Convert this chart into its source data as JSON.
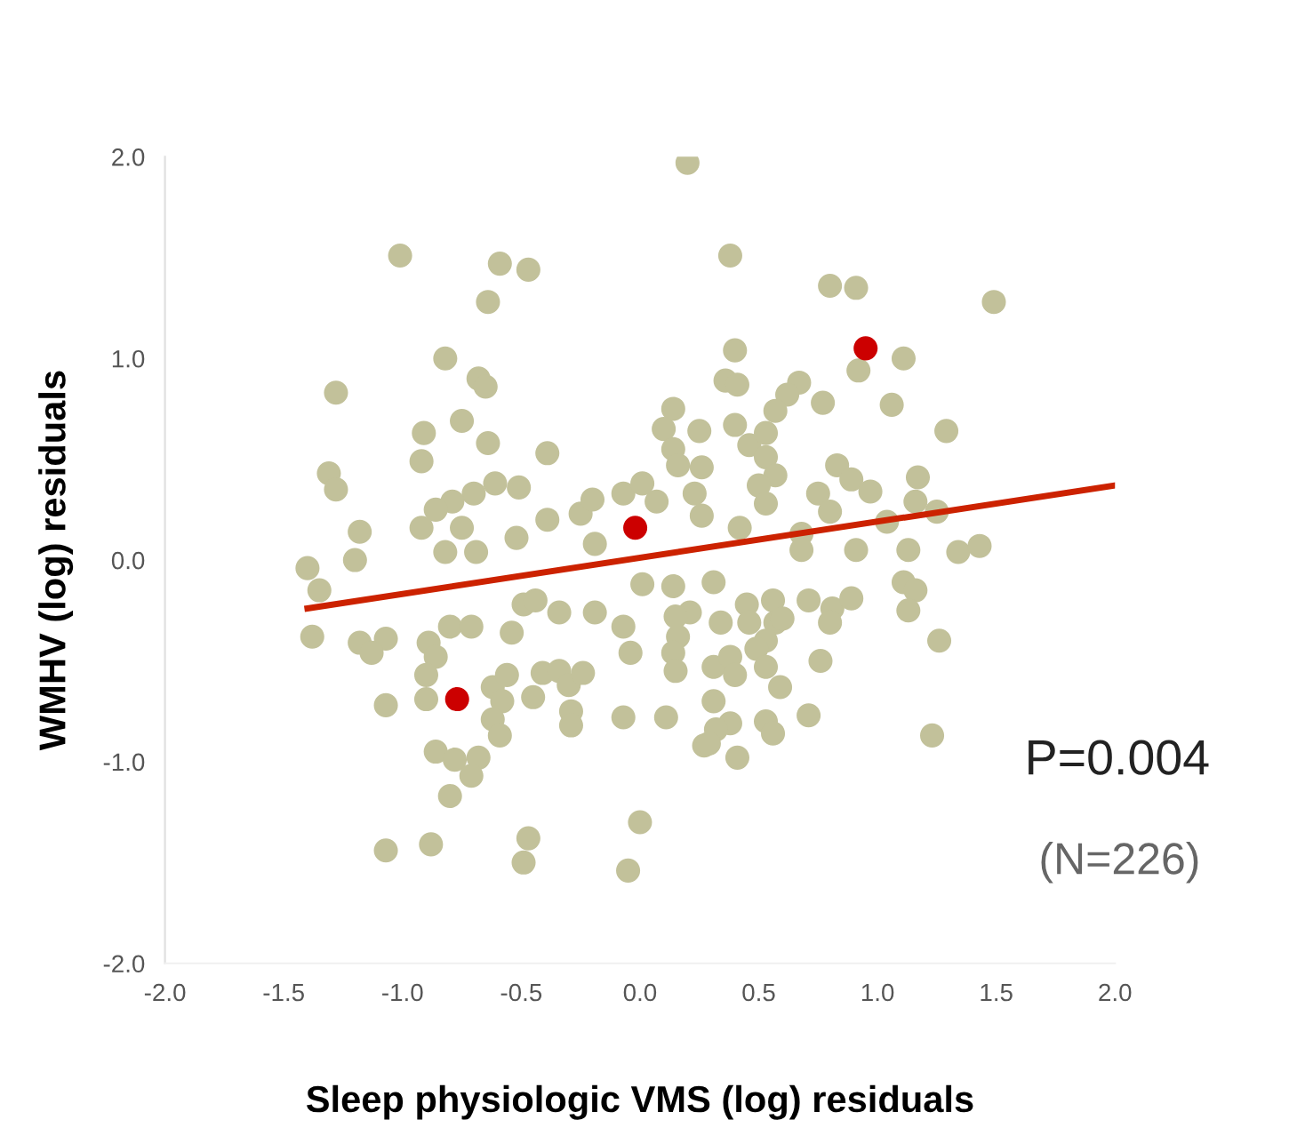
{
  "chart_data": {
    "type": "scatter",
    "xlabel": "Sleep physiologic VMS (log) residuals",
    "ylabel": "WMHV (log) residuals",
    "xlim": [
      -2,
      2
    ],
    "ylim": [
      -2,
      2
    ],
    "xticks": [
      {
        "value": -2,
        "label": "-2.0"
      },
      {
        "value": -1.5,
        "label": "-1.5"
      },
      {
        "value": -1,
        "label": "-1.0"
      },
      {
        "value": -0.5,
        "label": "-0.5"
      },
      {
        "value": 0,
        "label": "0.0"
      },
      {
        "value": 0.5,
        "label": "0.5"
      },
      {
        "value": 1,
        "label": "1.0"
      },
      {
        "value": 1.5,
        "label": "1.5"
      },
      {
        "value": 2,
        "label": "2.0"
      }
    ],
    "yticks": [
      {
        "value": -2,
        "label": "-2.0"
      },
      {
        "value": -1,
        "label": "-1.0"
      },
      {
        "value": 0,
        "label": "0.0"
      },
      {
        "value": 1,
        "label": "1.0"
      },
      {
        "value": 2,
        "label": "2.0"
      }
    ],
    "grid": false,
    "annotations": [
      "P=0.004",
      "(N=226)"
    ],
    "series": [
      {
        "marker": "circle",
        "color": "#c2c19a",
        "x": [
          0.2,
          -1.01,
          -0.59,
          -0.47,
          -0.64,
          -0.82,
          -0.68,
          -0.65,
          -1.28,
          -0.75,
          -0.91,
          -0.64,
          -0.39,
          -0.92,
          0.14,
          0.1,
          0.25,
          -1.31,
          -1.28,
          -0.61,
          -0.51,
          -0.7,
          -0.79,
          -0.86,
          -0.92,
          -1.18,
          -0.39,
          -0.52,
          -0.25,
          -0.2,
          -0.07,
          0.01,
          0.07,
          0.14,
          0.16,
          -0.19,
          -1.2,
          -1.4,
          -0.75,
          -0.82,
          -0.69,
          0.38,
          0.8,
          0.91,
          1.49,
          0.92,
          1.11,
          0.4,
          0.36,
          0.41,
          0.67,
          0.62,
          0.57,
          0.77,
          1.06,
          1.29,
          0.4,
          0.46,
          0.53,
          0.53,
          0.57,
          0.26,
          0.23,
          0.26,
          0.5,
          0.53,
          0.83,
          0.89,
          0.97,
          0.75,
          0.8,
          1.17,
          1.16,
          1.25,
          1.04,
          0.42,
          0.68,
          0.91,
          1.13,
          1.34,
          1.43,
          -1.35,
          -1.38,
          -1.18,
          -1.07,
          -1.13,
          -0.89,
          -0.86,
          -0.8,
          -0.71,
          -0.54,
          -0.49,
          -0.44,
          -0.34,
          -0.19,
          -0.07,
          -0.04,
          0.01,
          0.14,
          0.21,
          0.16,
          0.14,
          0.15,
          -1.07,
          -0.9,
          -0.9,
          -0.62,
          -0.56,
          -0.58,
          -0.62,
          -0.59,
          -0.45,
          -0.41,
          -0.34,
          -0.3,
          -0.24,
          -0.29,
          -0.29,
          -0.07,
          0.11,
          0.27,
          -0.86,
          -0.78,
          -0.68,
          -0.71,
          -0.8,
          0.0,
          -1.07,
          -0.88,
          -0.47,
          -0.49,
          -0.05,
          0.68,
          0.31,
          0.15,
          0.34,
          0.45,
          0.46,
          0.56,
          0.57,
          0.6,
          0.53,
          0.49,
          0.71,
          0.81,
          0.89,
          0.8,
          1.11,
          1.16,
          1.13,
          1.26,
          0.76,
          0.31,
          0.38,
          0.4,
          0.53,
          0.59,
          0.31,
          0.38,
          0.32,
          0.29,
          0.53,
          0.56,
          0.71,
          0.41,
          1.23
        ],
        "values": [
          1.97,
          1.51,
          1.47,
          1.44,
          1.28,
          1.0,
          0.9,
          0.86,
          0.83,
          0.69,
          0.63,
          0.58,
          0.53,
          0.49,
          0.75,
          0.65,
          0.64,
          0.43,
          0.35,
          0.38,
          0.36,
          0.33,
          0.29,
          0.25,
          0.16,
          0.14,
          0.2,
          0.11,
          0.23,
          0.3,
          0.33,
          0.38,
          0.29,
          0.55,
          0.47,
          0.08,
          0.0,
          -0.04,
          0.16,
          0.04,
          0.04,
          1.51,
          1.36,
          1.35,
          1.28,
          0.94,
          1.0,
          1.04,
          0.89,
          0.87,
          0.88,
          0.82,
          0.74,
          0.78,
          0.77,
          0.64,
          0.67,
          0.57,
          0.63,
          0.51,
          0.42,
          0.46,
          0.33,
          0.22,
          0.37,
          0.28,
          0.47,
          0.4,
          0.34,
          0.33,
          0.24,
          0.41,
          0.29,
          0.24,
          0.19,
          0.16,
          0.13,
          0.05,
          0.05,
          0.04,
          0.07,
          -0.15,
          -0.38,
          -0.41,
          -0.39,
          -0.46,
          -0.41,
          -0.48,
          -0.33,
          -0.33,
          -0.36,
          -0.22,
          -0.2,
          -0.26,
          -0.26,
          -0.33,
          -0.46,
          -0.12,
          -0.13,
          -0.26,
          -0.38,
          -0.46,
          -0.55,
          -0.72,
          -0.57,
          -0.69,
          -0.63,
          -0.57,
          -0.7,
          -0.79,
          -0.87,
          -0.68,
          -0.56,
          -0.55,
          -0.62,
          -0.56,
          -0.75,
          -0.82,
          -0.78,
          -0.78,
          -0.92,
          -0.95,
          -0.99,
          -0.98,
          -1.07,
          -1.17,
          -1.3,
          -1.44,
          -1.41,
          -1.38,
          -1.5,
          -1.54,
          0.05,
          -0.11,
          -0.28,
          -0.31,
          -0.22,
          -0.31,
          -0.2,
          -0.31,
          -0.29,
          -0.4,
          -0.44,
          -0.2,
          -0.24,
          -0.19,
          -0.31,
          -0.11,
          -0.15,
          -0.25,
          -0.4,
          -0.5,
          -0.53,
          -0.48,
          -0.57,
          -0.53,
          -0.63,
          -0.7,
          -0.81,
          -0.84,
          -0.91,
          -0.8,
          -0.86,
          -0.77,
          -0.98,
          -0.87
        ]
      },
      {
        "marker": "circle",
        "color": "#cc0000",
        "x": [
          -0.02,
          0.95,
          -0.77
        ],
        "values": [
          0.16,
          1.05,
          -0.69
        ]
      },
      {
        "type": "line",
        "marker": "none",
        "color": "#cc2200",
        "x": [
          -1.4,
          2.0
        ],
        "values": [
          -0.24,
          0.37
        ]
      }
    ]
  }
}
